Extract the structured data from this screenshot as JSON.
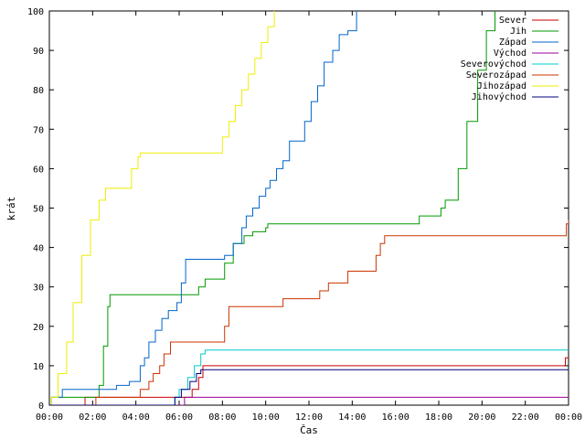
{
  "chart_data": {
    "type": "line",
    "xlabel": "Čas",
    "ylabel": "krát",
    "xlim": [
      0,
      24
    ],
    "ylim": [
      0,
      100
    ],
    "x_ticks": [
      0,
      2,
      4,
      6,
      8,
      10,
      12,
      14,
      16,
      18,
      20,
      22,
      24
    ],
    "x_tick_labels": [
      "00:00",
      "02:00",
      "04:00",
      "06:00",
      "08:00",
      "10:00",
      "12:00",
      "14:00",
      "16:00",
      "18:00",
      "20:00",
      "22:00",
      "00:00"
    ],
    "y_ticks": [
      0,
      10,
      20,
      30,
      40,
      50,
      60,
      70,
      80,
      90,
      100
    ],
    "grid": false,
    "legend_position": "top-right",
    "step_lines": true,
    "series": [
      {
        "name": "Sever",
        "color": "#cc0000",
        "points": [
          [
            0,
            0
          ],
          [
            1.6,
            0
          ],
          [
            1.65,
            2
          ],
          [
            6.5,
            2
          ],
          [
            6.6,
            4
          ],
          [
            6.9,
            7
          ],
          [
            7.1,
            10
          ],
          [
            23.8,
            10
          ],
          [
            23.85,
            12
          ],
          [
            24,
            12
          ]
        ]
      },
      {
        "name": "Jih",
        "color": "#009900",
        "points": [
          [
            0,
            0
          ],
          [
            0.1,
            2
          ],
          [
            2.1,
            2
          ],
          [
            2.3,
            5
          ],
          [
            2.5,
            15
          ],
          [
            2.7,
            25
          ],
          [
            2.8,
            28
          ],
          [
            6.6,
            28
          ],
          [
            6.9,
            30
          ],
          [
            7.2,
            32
          ],
          [
            7.8,
            32
          ],
          [
            8.1,
            36
          ],
          [
            8.5,
            41
          ],
          [
            9,
            43
          ],
          [
            9.4,
            44
          ],
          [
            10,
            45
          ],
          [
            10.1,
            46
          ],
          [
            17,
            46
          ],
          [
            17.1,
            48
          ],
          [
            18,
            48
          ],
          [
            18.1,
            50
          ],
          [
            18.3,
            52
          ],
          [
            18.6,
            52
          ],
          [
            18.9,
            60
          ],
          [
            19.3,
            72
          ],
          [
            19.8,
            85
          ],
          [
            20.2,
            95
          ],
          [
            20.6,
            100
          ]
        ]
      },
      {
        "name": "Západ",
        "color": "#0066cc",
        "points": [
          [
            0,
            0
          ],
          [
            0.1,
            2
          ],
          [
            0.5,
            2
          ],
          [
            0.6,
            4
          ],
          [
            2.9,
            4
          ],
          [
            3.1,
            5
          ],
          [
            3.5,
            5
          ],
          [
            3.7,
            6
          ],
          [
            4,
            6
          ],
          [
            4.2,
            10
          ],
          [
            4.4,
            12
          ],
          [
            4.6,
            16
          ],
          [
            4.9,
            19
          ],
          [
            5.2,
            22
          ],
          [
            5.5,
            24
          ],
          [
            5.9,
            26
          ],
          [
            6.1,
            31
          ],
          [
            6.3,
            37
          ],
          [
            7.9,
            37
          ],
          [
            8.1,
            38
          ],
          [
            8.5,
            41
          ],
          [
            8.9,
            45
          ],
          [
            9.1,
            48
          ],
          [
            9.4,
            50
          ],
          [
            9.7,
            53
          ],
          [
            10,
            55
          ],
          [
            10.2,
            57
          ],
          [
            10.5,
            60
          ],
          [
            10.8,
            62
          ],
          [
            11.1,
            67
          ],
          [
            11.6,
            67
          ],
          [
            11.8,
            72
          ],
          [
            12.1,
            77
          ],
          [
            12.4,
            81
          ],
          [
            12.7,
            87
          ],
          [
            13.1,
            90
          ],
          [
            13.4,
            94
          ],
          [
            13.8,
            95
          ],
          [
            14.2,
            100
          ]
        ]
      },
      {
        "name": "Východ",
        "color": "#990099",
        "points": [
          [
            0,
            0
          ],
          [
            6.2,
            0
          ],
          [
            6.25,
            2
          ],
          [
            24,
            2
          ]
        ]
      },
      {
        "name": "Severovýchod",
        "color": "#00cccc",
        "points": [
          [
            0,
            0
          ],
          [
            5.6,
            0
          ],
          [
            5.8,
            2
          ],
          [
            6,
            4
          ],
          [
            6.4,
            7
          ],
          [
            6.7,
            10
          ],
          [
            7,
            13
          ],
          [
            7.2,
            14
          ],
          [
            24,
            14
          ]
        ]
      },
      {
        "name": "Severozápad",
        "color": "#cc3300",
        "points": [
          [
            0,
            0
          ],
          [
            2.1,
            0
          ],
          [
            2.15,
            2
          ],
          [
            4,
            2
          ],
          [
            4.2,
            4
          ],
          [
            4.6,
            6
          ],
          [
            4.8,
            8
          ],
          [
            5.1,
            10
          ],
          [
            5.3,
            13
          ],
          [
            5.6,
            16
          ],
          [
            7.9,
            16
          ],
          [
            8.1,
            20
          ],
          [
            8.3,
            25
          ],
          [
            10.4,
            25
          ],
          [
            10.8,
            27
          ],
          [
            12.3,
            27
          ],
          [
            12.5,
            29
          ],
          [
            12.9,
            31
          ],
          [
            13.6,
            31
          ],
          [
            13.8,
            34
          ],
          [
            14.9,
            34
          ],
          [
            15.1,
            38
          ],
          [
            15.3,
            41
          ],
          [
            15.5,
            43
          ],
          [
            23.8,
            43
          ],
          [
            23.9,
            46
          ],
          [
            24,
            47
          ]
        ]
      },
      {
        "name": "Jihozápad",
        "color": "#eeee00",
        "points": [
          [
            0,
            0
          ],
          [
            0.1,
            2
          ],
          [
            0.4,
            8
          ],
          [
            0.8,
            16
          ],
          [
            1.1,
            26
          ],
          [
            1.5,
            38
          ],
          [
            1.9,
            47
          ],
          [
            2.3,
            52
          ],
          [
            2.6,
            55
          ],
          [
            3.6,
            55
          ],
          [
            3.8,
            60
          ],
          [
            4.1,
            63
          ],
          [
            4.2,
            64
          ],
          [
            7.9,
            64
          ],
          [
            8,
            68
          ],
          [
            8.3,
            72
          ],
          [
            8.6,
            76
          ],
          [
            8.9,
            80
          ],
          [
            9.2,
            84
          ],
          [
            9.5,
            88
          ],
          [
            9.8,
            92
          ],
          [
            10.1,
            96
          ],
          [
            10.4,
            100
          ]
        ]
      },
      {
        "name": "Jihovýchod",
        "color": "#000080",
        "points": [
          [
            0,
            0
          ],
          [
            5.7,
            0
          ],
          [
            5.8,
            2
          ],
          [
            6.1,
            4
          ],
          [
            6.5,
            6
          ],
          [
            6.8,
            8
          ],
          [
            7,
            9
          ],
          [
            24,
            9
          ]
        ]
      }
    ]
  }
}
